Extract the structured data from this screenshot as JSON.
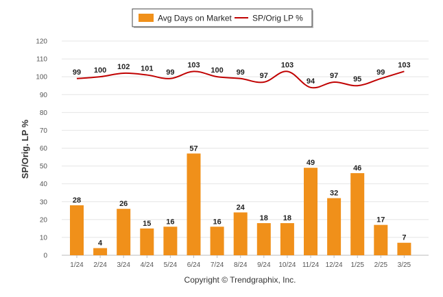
{
  "chart_data": {
    "type": "bar",
    "categories": [
      "1/24",
      "2/24",
      "3/24",
      "4/24",
      "5/24",
      "6/24",
      "7/24",
      "8/24",
      "9/24",
      "10/24",
      "11/24",
      "12/24",
      "1/25",
      "2/25",
      "3/25"
    ],
    "series": [
      {
        "name": "Avg Days on Market",
        "type": "bar",
        "color": "#f0901a",
        "values": [
          28,
          4,
          26,
          15,
          16,
          57,
          16,
          24,
          18,
          18,
          49,
          32,
          46,
          17,
          7
        ]
      },
      {
        "name": "SP/Orig LP %",
        "type": "line",
        "color": "#c00000",
        "values": [
          99,
          100,
          102,
          101,
          99,
          103,
          100,
          99,
          97,
          103,
          94,
          97,
          95,
          99,
          103
        ]
      }
    ],
    "ylabel": "SP/Orig. LP %",
    "xlabel": "",
    "ylim": [
      0,
      120
    ],
    "yticks": [
      0,
      10,
      20,
      30,
      40,
      50,
      60,
      70,
      80,
      90,
      100,
      110,
      120
    ],
    "grid": true,
    "legend_position": "top-center"
  },
  "footer": {
    "copyright": "Copyright © Trendgraphix, Inc."
  }
}
